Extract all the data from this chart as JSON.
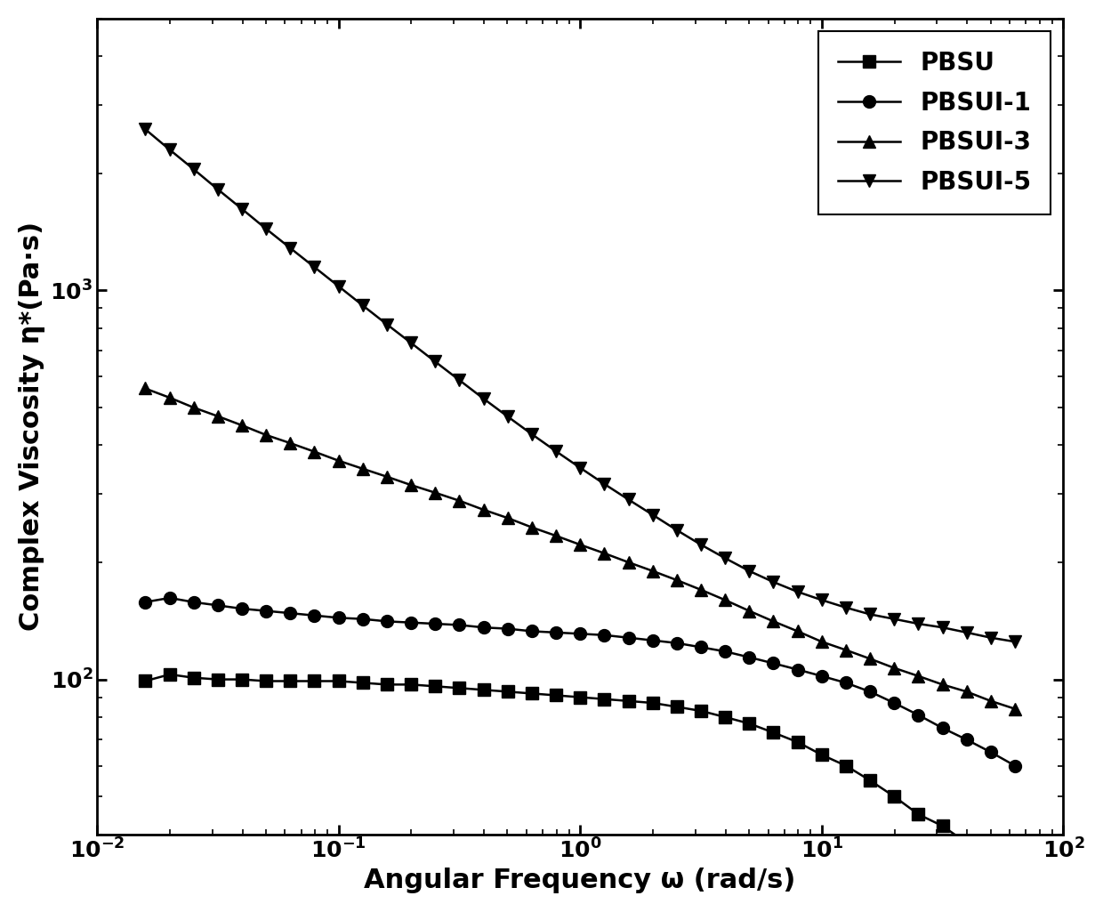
{
  "title": "",
  "xlabel": "Angular Frequency ω (rad/s)",
  "ylabel": "Complex Viscosity η*(Pa·s)",
  "xlim": [
    0.01,
    100
  ],
  "ylim": [
    40,
    5000
  ],
  "series": [
    {
      "label": "PBSU",
      "marker": "s",
      "color": "#000000",
      "x": [
        0.0158,
        0.02,
        0.0251,
        0.0316,
        0.0398,
        0.0501,
        0.0631,
        0.0794,
        0.1,
        0.1259,
        0.1585,
        0.1995,
        0.2512,
        0.3162,
        0.3981,
        0.5012,
        0.631,
        0.7943,
        1.0,
        1.2589,
        1.5849,
        1.9953,
        2.5119,
        3.1623,
        3.9811,
        5.0119,
        6.3096,
        7.9433,
        10.0,
        12.589,
        15.849,
        19.953,
        25.119,
        31.623,
        39.811,
        50.119,
        63.096
      ],
      "y": [
        99,
        103,
        101,
        100,
        100,
        99,
        99,
        99,
        99,
        98,
        97,
        97,
        96,
        95,
        94,
        93,
        92,
        91,
        90,
        89,
        88,
        87,
        85,
        83,
        80,
        77,
        73,
        69,
        64,
        60,
        55,
        50,
        45,
        42,
        38,
        36,
        34
      ]
    },
    {
      "label": "PBSUI-1",
      "marker": "o",
      "color": "#000000",
      "x": [
        0.0158,
        0.02,
        0.0251,
        0.0316,
        0.0398,
        0.0501,
        0.0631,
        0.0794,
        0.1,
        0.1259,
        0.1585,
        0.1995,
        0.2512,
        0.3162,
        0.3981,
        0.5012,
        0.631,
        0.7943,
        1.0,
        1.2589,
        1.5849,
        1.9953,
        2.5119,
        3.1623,
        3.9811,
        5.0119,
        6.3096,
        7.9433,
        10.0,
        12.589,
        15.849,
        19.953,
        25.119,
        31.623,
        39.811,
        50.119,
        63.096
      ],
      "y": [
        158,
        162,
        158,
        155,
        152,
        150,
        148,
        146,
        144,
        143,
        141,
        140,
        139,
        138,
        136,
        135,
        133,
        132,
        131,
        130,
        128,
        126,
        124,
        121,
        118,
        114,
        110,
        106,
        102,
        98,
        93,
        87,
        81,
        75,
        70,
        65,
        60
      ]
    },
    {
      "label": "PBSUI-3",
      "marker": "^",
      "color": "#000000",
      "x": [
        0.0158,
        0.02,
        0.0251,
        0.0316,
        0.0398,
        0.0501,
        0.0631,
        0.0794,
        0.1,
        0.1259,
        0.1585,
        0.1995,
        0.2512,
        0.3162,
        0.3981,
        0.5012,
        0.631,
        0.7943,
        1.0,
        1.2589,
        1.5849,
        1.9953,
        2.5119,
        3.1623,
        3.9811,
        5.0119,
        6.3096,
        7.9433,
        10.0,
        12.589,
        15.849,
        19.953,
        25.119,
        31.623,
        39.811,
        50.119,
        63.096
      ],
      "y": [
        560,
        530,
        500,
        475,
        450,
        425,
        405,
        385,
        365,
        348,
        332,
        316,
        302,
        288,
        273,
        260,
        246,
        234,
        222,
        211,
        200,
        190,
        180,
        170,
        160,
        150,
        141,
        133,
        125,
        119,
        113,
        107,
        102,
        97,
        93,
        88,
        84
      ]
    },
    {
      "label": "PBSUI-5",
      "marker": "v",
      "color": "#000000",
      "x": [
        0.0158,
        0.02,
        0.0251,
        0.0316,
        0.0398,
        0.0501,
        0.0631,
        0.0794,
        0.1,
        0.1259,
        0.1585,
        0.1995,
        0.2512,
        0.3162,
        0.3981,
        0.5012,
        0.631,
        0.7943,
        1.0,
        1.2589,
        1.5849,
        1.9953,
        2.5119,
        3.1623,
        3.9811,
        5.0119,
        6.3096,
        7.9433,
        10.0,
        12.589,
        15.849,
        19.953,
        25.119,
        31.623,
        39.811,
        50.119,
        63.096
      ],
      "y": [
        2600,
        2300,
        2050,
        1820,
        1620,
        1440,
        1285,
        1148,
        1025,
        915,
        818,
        733,
        656,
        588,
        527,
        474,
        427,
        386,
        350,
        318,
        290,
        265,
        242,
        222,
        205,
        190,
        178,
        168,
        160,
        153,
        147,
        143,
        139,
        136,
        132,
        128,
        125
      ]
    }
  ],
  "legend_loc": "upper right",
  "marker_size": 10,
  "line_width": 1.8,
  "label_fontsize": 22,
  "tick_fontsize": 18,
  "legend_fontsize": 20,
  "background_color": "#ffffff"
}
